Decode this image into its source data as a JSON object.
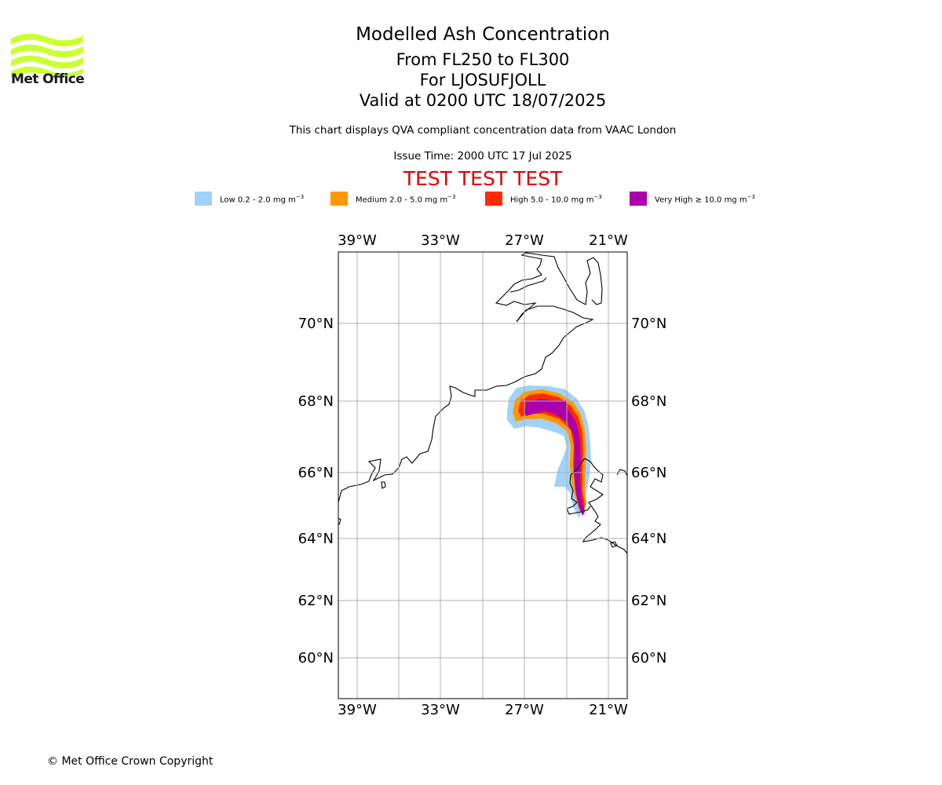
{
  "brand": {
    "name": "Met Office",
    "logo_color": "#ccff33"
  },
  "header": {
    "title": "Modelled Ash Concentration",
    "levels": "From FL250 to FL300",
    "volcano": "For LJOSUFJOLL",
    "valid": "Valid at 0200 UTC 18/07/2025",
    "description": "This chart displays QVA compliant concentration data from VAAC London",
    "issue_time": "Issue Time: 2000 UTC 17 Jul 2025",
    "test_banner": "TEST TEST TEST",
    "test_color": "#e00000"
  },
  "legend": [
    {
      "label": "Low 0.2 - 2.0 mg m",
      "exp": "−3",
      "color": "#a0d2fa"
    },
    {
      "label": "Medium 2.0 - 5.0 mg m",
      "exp": "−3",
      "color": "#ff9900"
    },
    {
      "label": "High 5.0 - 10.0 mg m",
      "exp": "−3",
      "color": "#ff2a00"
    },
    {
      "label": "Very High  ≥  10.0 mg m",
      "exp": "−3",
      "color": "#aa00aa"
    }
  ],
  "map": {
    "lon_ticks": [
      "39°W",
      "33°W",
      "27°W",
      "21°W"
    ],
    "lat_ticks": [
      "70°N",
      "68°N",
      "66°N",
      "64°N",
      "62°N",
      "60°N"
    ]
  },
  "footer": {
    "copyright": "© Met Office Crown Copyright"
  }
}
